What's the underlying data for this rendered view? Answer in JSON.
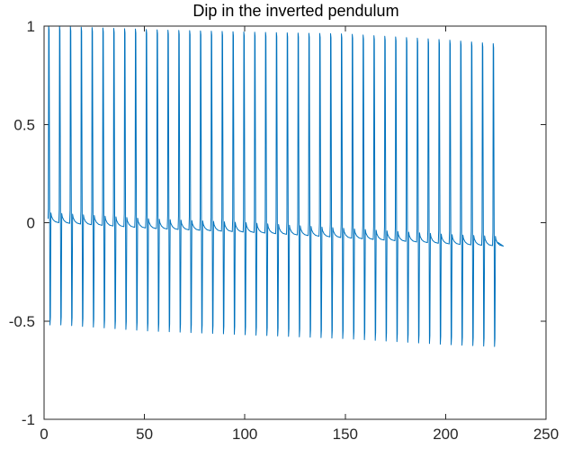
{
  "chart_data": {
    "type": "line",
    "title": "Dip in the inverted pendulum",
    "xlabel": "",
    "ylabel": "",
    "xlim": [
      0,
      250
    ],
    "ylim": [
      -1,
      1
    ],
    "x_ticks": [
      "0",
      "50",
      "100",
      "150",
      "200",
      "250"
    ],
    "y_ticks": [
      "-1",
      "-0.5",
      "0",
      "0.5",
      "1"
    ],
    "grid": false,
    "line_color": "#0072BD",
    "series": [
      {
        "description": "periodic spiking signal",
        "period": 5.4,
        "cycles": 42,
        "x_start": 2,
        "x_end": 226,
        "peaks": [
          {
            "x": 3,
            "y": 1.0
          },
          {
            "x": 30,
            "y": 0.99
          },
          {
            "x": 60,
            "y": 0.98
          },
          {
            "x": 100,
            "y": 0.97
          },
          {
            "x": 150,
            "y": 0.96
          },
          {
            "x": 200,
            "y": 0.93
          },
          {
            "x": 224,
            "y": 0.91
          }
        ],
        "troughs": [
          {
            "x": 8,
            "y": -0.52
          },
          {
            "x": 50,
            "y": -0.55
          },
          {
            "x": 100,
            "y": -0.57
          },
          {
            "x": 150,
            "y": -0.59
          },
          {
            "x": 200,
            "y": -0.62
          },
          {
            "x": 224,
            "y": -0.63
          }
        ],
        "baseline": [
          {
            "x": 2,
            "y": 0.02
          },
          {
            "x": 50,
            "y": -0.01
          },
          {
            "x": 100,
            "y": -0.03
          },
          {
            "x": 150,
            "y": -0.06
          },
          {
            "x": 200,
            "y": -0.09
          },
          {
            "x": 226,
            "y": -0.1
          }
        ]
      }
    ]
  }
}
